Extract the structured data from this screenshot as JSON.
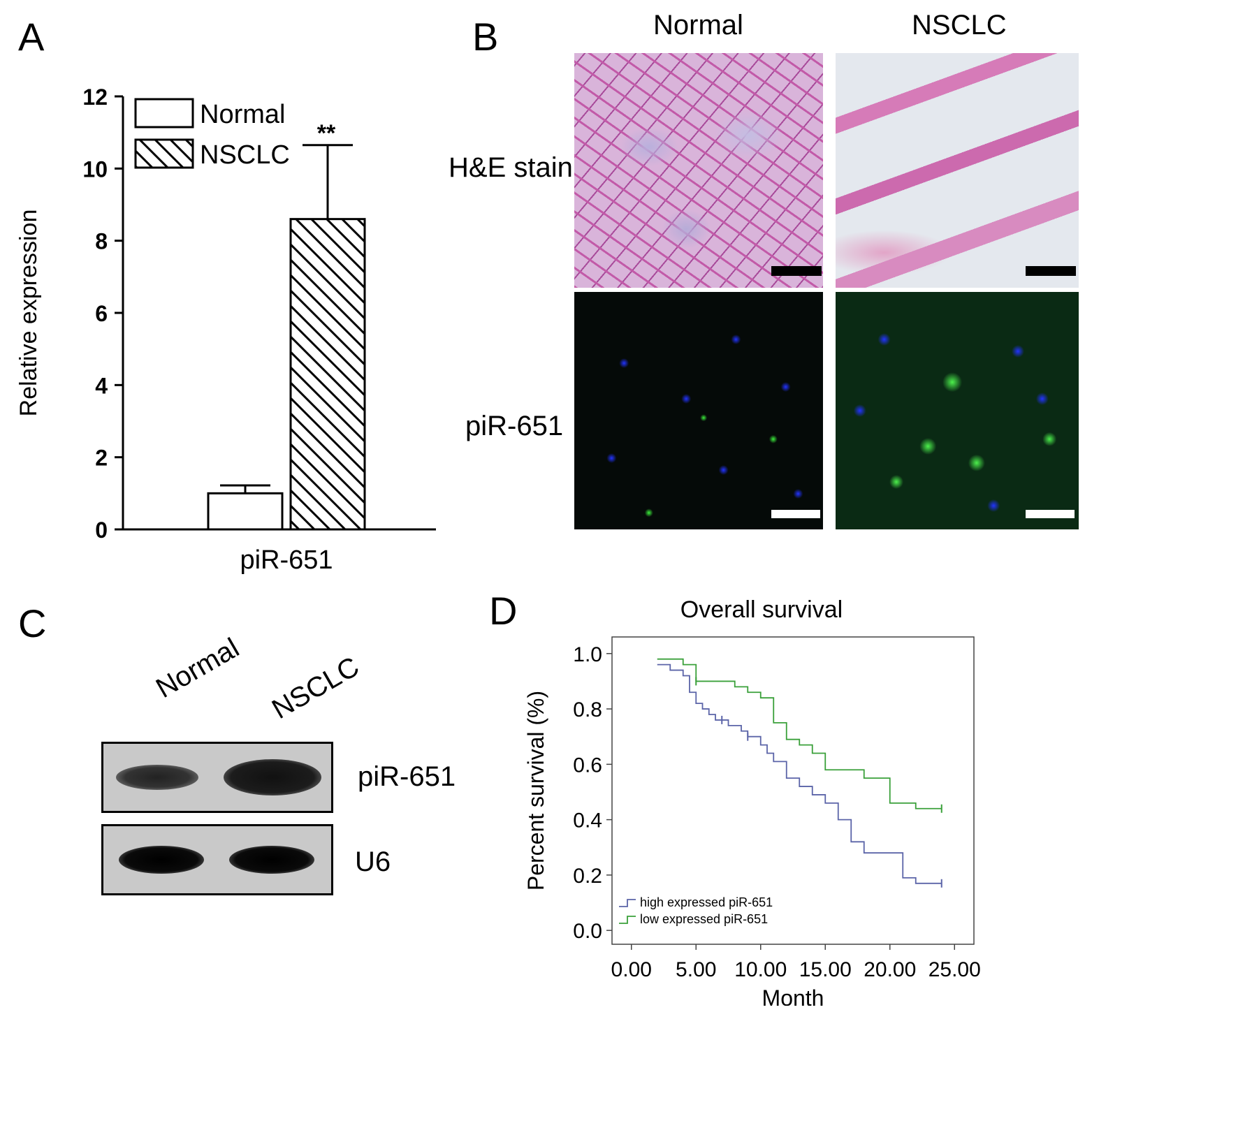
{
  "panels": {
    "a": {
      "letter": "A"
    },
    "b": {
      "letter": "B",
      "col_normal": "Normal",
      "col_nsclc": "NSCLC",
      "row_he": "H&E stain",
      "row_pir": "piR-651"
    },
    "c": {
      "letter": "C",
      "lane_normal": "Normal",
      "lane_nsclc": "NSCLC",
      "band_pir": "piR-651",
      "band_u6": "U6",
      "band_intensity": {
        "piR-651": {
          "Normal": "weaker",
          "NSCLC": "stronger"
        },
        "U6": {
          "Normal": "equal",
          "NSCLC": "equal"
        }
      }
    },
    "d": {
      "letter": "D"
    }
  },
  "colors": {
    "high_expressed": "#5b64a8",
    "low_expressed": "#3aa03a",
    "he_stain": "#d9a0cf",
    "dapi": "#1a2cff",
    "fitc": "#2ee82e",
    "scale_bar_he": "#000000",
    "scale_bar_if": "#ffffff"
  },
  "chart_data": [
    {
      "type": "bar",
      "categories": [
        "piR-651"
      ],
      "series": [
        {
          "name": "Normal",
          "values": [
            1.0
          ],
          "error": [
            0.22
          ],
          "pattern": "open"
        },
        {
          "name": "NSCLC",
          "values": [
            8.6
          ],
          "error": [
            2.05
          ],
          "pattern": "hatched"
        }
      ],
      "ylabel": "Relative expression",
      "xlabel": "",
      "ylim": [
        0,
        12
      ],
      "yticks": [
        "0",
        "2",
        "4",
        "6",
        "8",
        "10",
        "12"
      ],
      "annotation": "**",
      "legend": "top-left"
    },
    {
      "type": "line",
      "title": "Overall survival",
      "xlabel": "Month",
      "ylabel": "Percent survival (%)",
      "xlim": [
        -1.5,
        26.5
      ],
      "ylim": [
        -0.05,
        1.06
      ],
      "xticks": [
        "0.00",
        "5.00",
        "10.00",
        "15.00",
        "20.00",
        "25.00"
      ],
      "yticks": [
        "0.0",
        "0.2",
        "0.4",
        "0.6",
        "0.8",
        "1.0"
      ],
      "legend": "bottom-left",
      "series": [
        {
          "name": "high expressed piR-651",
          "color": "#5b64a8",
          "x": [
            2,
            3,
            4,
            4.5,
            5,
            5.5,
            6,
            6.5,
            7,
            7.5,
            8,
            8.5,
            9,
            10,
            10.5,
            11,
            12,
            13,
            14,
            15,
            16,
            17,
            18,
            21,
            22,
            24
          ],
          "y": [
            0.96,
            0.94,
            0.92,
            0.86,
            0.82,
            0.8,
            0.78,
            0.76,
            0.76,
            0.74,
            0.74,
            0.72,
            0.7,
            0.67,
            0.64,
            0.61,
            0.55,
            0.52,
            0.49,
            0.46,
            0.4,
            0.32,
            0.28,
            0.19,
            0.17,
            0.17
          ],
          "censored": [
            {
              "x": 7,
              "y": 0.76
            },
            {
              "x": 9,
              "y": 0.7
            },
            {
              "x": 24,
              "y": 0.17
            }
          ]
        },
        {
          "name": "low expressed piR-651",
          "color": "#3aa03a",
          "x": [
            2,
            4,
            5,
            6,
            8,
            9,
            10,
            11,
            12,
            13,
            14,
            15,
            18,
            20,
            22,
            24
          ],
          "y": [
            0.98,
            0.96,
            0.9,
            0.9,
            0.88,
            0.86,
            0.84,
            0.75,
            0.69,
            0.67,
            0.64,
            0.58,
            0.55,
            0.46,
            0.44,
            0.44
          ],
          "censored": [
            {
              "x": 5,
              "y": 0.9
            },
            {
              "x": 24,
              "y": 0.44
            }
          ]
        }
      ]
    }
  ]
}
